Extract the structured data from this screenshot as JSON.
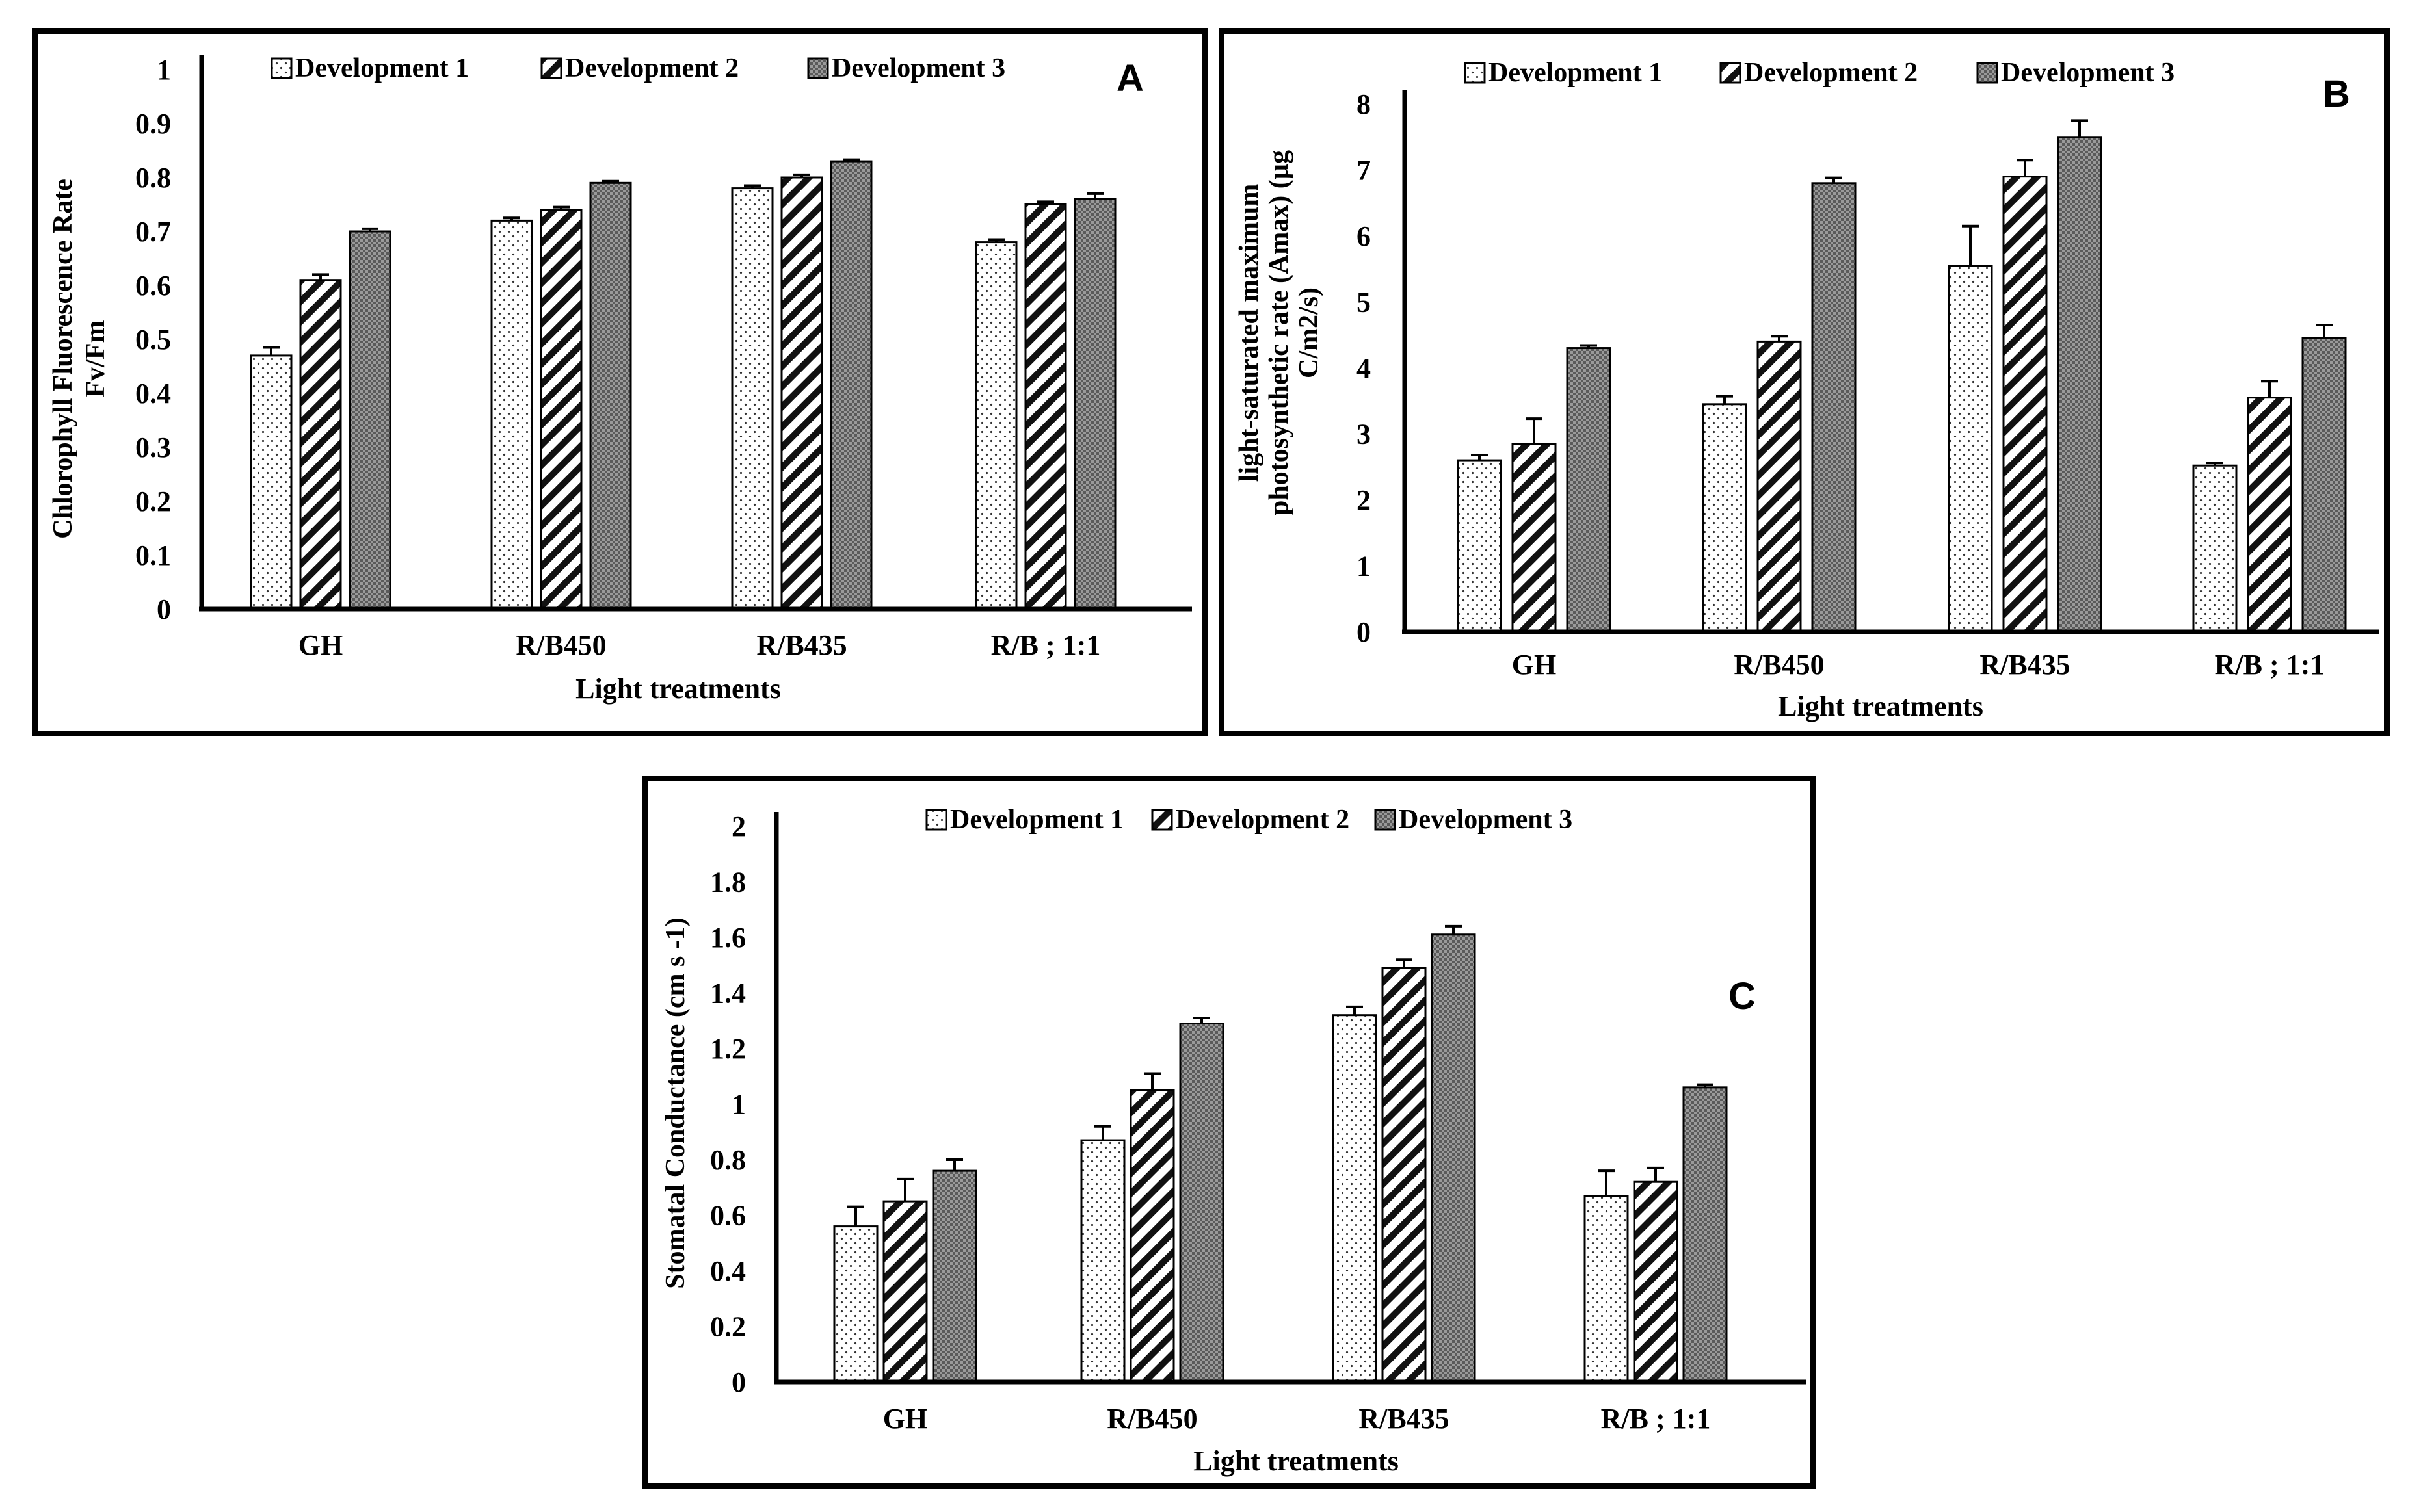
{
  "chart_data": [
    {
      "id": "A",
      "type": "bar",
      "panel_label": "A",
      "title": "",
      "xlabel": "Light treatments",
      "ylabel_lines": [
        "Chlorophyll Fluorescence Rate",
        "Fv/Fm"
      ],
      "ylim": [
        0,
        1
      ],
      "yticks": [
        "0",
        "0.1",
        "0.2",
        "0.3",
        "0.4",
        "0.5",
        "0.6",
        "0.7",
        "0.8",
        "0.9",
        "1"
      ],
      "tick_step": 0.1,
      "categories": [
        "GH",
        "R/B450",
        "R/B435",
        "R/B ; 1:1"
      ],
      "series": [
        {
          "name": "Development 1",
          "values": [
            0.47,
            0.72,
            0.78,
            0.68
          ],
          "errors": [
            0.015,
            0.005,
            0.005,
            0.005
          ]
        },
        {
          "name": "Development 2",
          "values": [
            0.61,
            0.74,
            0.8,
            0.75
          ],
          "errors": [
            0.01,
            0.005,
            0.005,
            0.005
          ]
        },
        {
          "name": "Development 3",
          "values": [
            0.7,
            0.79,
            0.83,
            0.76
          ],
          "errors": [
            0.005,
            0.003,
            0.003,
            0.01
          ]
        }
      ],
      "legend_position": "top"
    },
    {
      "id": "B",
      "type": "bar",
      "panel_label": "B",
      "title": "",
      "xlabel": "Light treatments",
      "ylabel_lines": [
        "light-saturated maximum",
        "photosynthetic rate (Amax) (µg",
        "C/m2/s)"
      ],
      "ylim": [
        0,
        8
      ],
      "yticks": [
        "0",
        "1",
        "2",
        "3",
        "4",
        "5",
        "6",
        "7",
        "8"
      ],
      "tick_step": 1,
      "categories": [
        "GH",
        "R/B450",
        "R/B435",
        "R/B ; 1:1"
      ],
      "series": [
        {
          "name": "Development 1",
          "values": [
            2.6,
            3.45,
            5.55,
            2.52
          ],
          "errors": [
            0.08,
            0.12,
            0.6,
            0.04
          ]
        },
        {
          "name": "Development 2",
          "values": [
            2.85,
            4.4,
            6.9,
            3.55
          ],
          "errors": [
            0.38,
            0.08,
            0.25,
            0.25
          ]
        },
        {
          "name": "Development 3",
          "values": [
            4.3,
            6.8,
            7.5,
            4.45
          ],
          "errors": [
            0.04,
            0.08,
            0.25,
            0.2
          ]
        }
      ],
      "legend_position": "top"
    },
    {
      "id": "C",
      "type": "bar",
      "panel_label": "C",
      "title": "",
      "xlabel": "Light treatments",
      "ylabel_lines": [
        "Stomatal Conductance (cm s -1)"
      ],
      "ylim": [
        0,
        2
      ],
      "yticks": [
        "0",
        "0.2",
        "0.4",
        "0.6",
        "0.8",
        "1",
        "1.2",
        "1.4",
        "1.6",
        "1.8",
        "2"
      ],
      "tick_step": 0.2,
      "categories": [
        "GH",
        "R/B450",
        "R/B435",
        "R/B ; 1:1"
      ],
      "series": [
        {
          "name": "Development 1",
          "values": [
            0.56,
            0.87,
            1.32,
            0.67
          ],
          "errors": [
            0.07,
            0.05,
            0.03,
            0.09
          ]
        },
        {
          "name": "Development 2",
          "values": [
            0.65,
            1.05,
            1.49,
            0.72
          ],
          "errors": [
            0.08,
            0.06,
            0.03,
            0.05
          ]
        },
        {
          "name": "Development 3",
          "values": [
            0.76,
            1.29,
            1.61,
            1.06
          ],
          "errors": [
            0.04,
            0.02,
            0.03,
            0.01
          ]
        }
      ],
      "legend_position": "top"
    }
  ]
}
